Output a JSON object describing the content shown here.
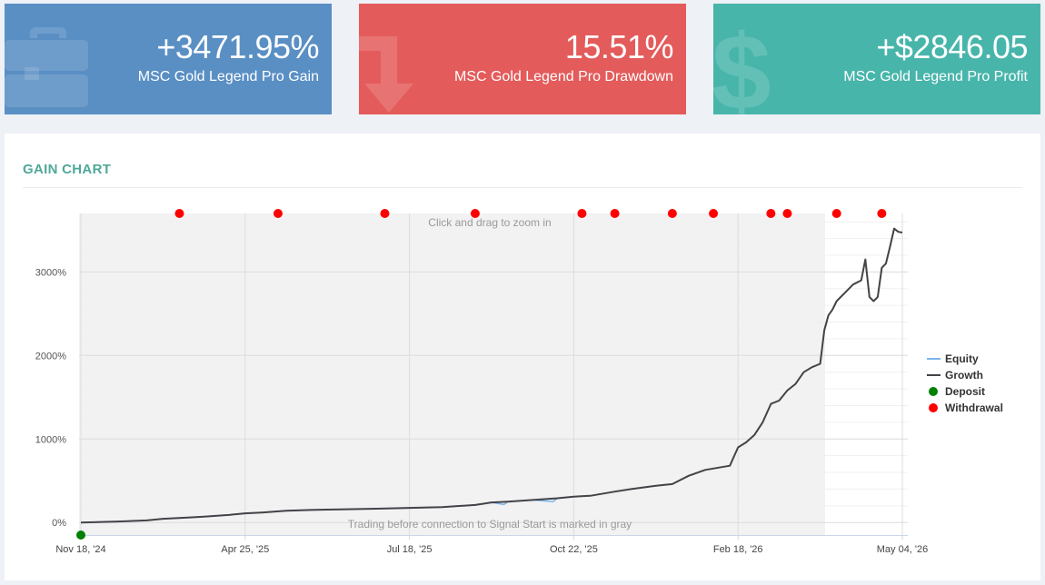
{
  "cards": [
    {
      "id": "gain",
      "value": "+3471.95%",
      "label": "MSC Gold Legend Pro Gain",
      "color": "#5a8fc4",
      "icon": "briefcase-icon"
    },
    {
      "id": "drawdown",
      "value": "15.51%",
      "label": "MSC Gold Legend Pro Drawdown",
      "color": "#e45b5b",
      "icon": "arrow-down-icon"
    },
    {
      "id": "profit",
      "value": "+$2846.05",
      "label": "MSC Gold Legend Pro Profit",
      "color": "#48b5ab",
      "icon": "dollar-icon"
    }
  ],
  "panel": {
    "title": "GAIN CHART"
  },
  "chart_data": {
    "type": "line",
    "zoom_hint": "Click and drag to zoom in",
    "gray_note": "Trading before connection to Signal Start is marked in gray",
    "x_ticks": [
      "Nov 18, '24",
      "Apr 25, '25",
      "Jul 18, '25",
      "Oct 22, '25",
      "Feb 18, '26",
      "May 04, '26"
    ],
    "y_ticks": [
      "0%",
      "1000%",
      "2000%",
      "3000%"
    ],
    "ylim": [
      -150,
      3700
    ],
    "legend": [
      {
        "name": "Equity",
        "kind": "line",
        "color": "#7cb5ec"
      },
      {
        "name": "Growth",
        "kind": "line",
        "color": "#434348"
      },
      {
        "name": "Deposit",
        "kind": "dot",
        "color": "#008000"
      },
      {
        "name": "Withdrawal",
        "kind": "dot",
        "color": "#ff0000"
      }
    ],
    "legend_position": "right",
    "grid": true,
    "series": [
      {
        "name": "Growth",
        "color": "#434348",
        "points": [
          [
            0,
            0
          ],
          [
            0.04,
            10
          ],
          [
            0.08,
            25
          ],
          [
            0.1,
            45
          ],
          [
            0.13,
            60
          ],
          [
            0.15,
            70
          ],
          [
            0.18,
            90
          ],
          [
            0.2,
            110
          ],
          [
            0.22,
            120
          ],
          [
            0.25,
            140
          ],
          [
            0.28,
            150
          ],
          [
            0.3,
            155
          ],
          [
            0.33,
            160
          ],
          [
            0.36,
            165
          ],
          [
            0.4,
            175
          ],
          [
            0.44,
            185
          ],
          [
            0.48,
            210
          ],
          [
            0.5,
            240
          ],
          [
            0.52,
            250
          ],
          [
            0.55,
            270
          ],
          [
            0.58,
            290
          ],
          [
            0.6,
            310
          ],
          [
            0.62,
            320
          ],
          [
            0.65,
            370
          ],
          [
            0.67,
            400
          ],
          [
            0.7,
            440
          ],
          [
            0.72,
            460
          ],
          [
            0.74,
            560
          ],
          [
            0.76,
            630
          ],
          [
            0.79,
            680
          ],
          [
            0.8,
            900
          ],
          [
            0.81,
            960
          ],
          [
            0.82,
            1050
          ],
          [
            0.83,
            1200
          ],
          [
            0.84,
            1420
          ],
          [
            0.85,
            1460
          ],
          [
            0.86,
            1580
          ],
          [
            0.87,
            1660
          ],
          [
            0.88,
            1800
          ],
          [
            0.89,
            1860
          ],
          [
            0.9,
            1900
          ],
          [
            0.905,
            2300
          ],
          [
            0.91,
            2480
          ],
          [
            0.915,
            2550
          ],
          [
            0.92,
            2650
          ],
          [
            0.93,
            2750
          ],
          [
            0.94,
            2850
          ],
          [
            0.95,
            2900
          ],
          [
            0.955,
            3150
          ],
          [
            0.96,
            2700
          ],
          [
            0.965,
            2650
          ],
          [
            0.97,
            2700
          ],
          [
            0.975,
            3050
          ],
          [
            0.98,
            3100
          ],
          [
            0.985,
            3300
          ],
          [
            0.99,
            3520
          ],
          [
            0.995,
            3480
          ],
          [
            1,
            3471.95
          ]
        ]
      },
      {
        "name": "Equity",
        "color": "#7cb5ec",
        "points": [
          [
            0,
            0
          ],
          [
            0.04,
            10
          ],
          [
            0.08,
            25
          ],
          [
            0.1,
            45
          ],
          [
            0.13,
            60
          ],
          [
            0.15,
            70
          ],
          [
            0.18,
            90
          ],
          [
            0.2,
            110
          ],
          [
            0.22,
            120
          ],
          [
            0.25,
            140
          ],
          [
            0.28,
            150
          ],
          [
            0.3,
            155
          ],
          [
            0.33,
            160
          ],
          [
            0.36,
            165
          ],
          [
            0.4,
            175
          ],
          [
            0.44,
            185
          ],
          [
            0.48,
            210
          ],
          [
            0.5,
            240
          ],
          [
            0.515,
            215
          ],
          [
            0.52,
            250
          ],
          [
            0.55,
            270
          ],
          [
            0.575,
            250
          ],
          [
            0.58,
            290
          ],
          [
            0.6,
            310
          ]
        ]
      }
    ],
    "deposits": [
      0
    ],
    "withdrawals": [
      0.12,
      0.24,
      0.37,
      0.48,
      0.61,
      0.65,
      0.72,
      0.77,
      0.84,
      0.86,
      0.92,
      0.975
    ],
    "gray_region_end": 0.906
  }
}
